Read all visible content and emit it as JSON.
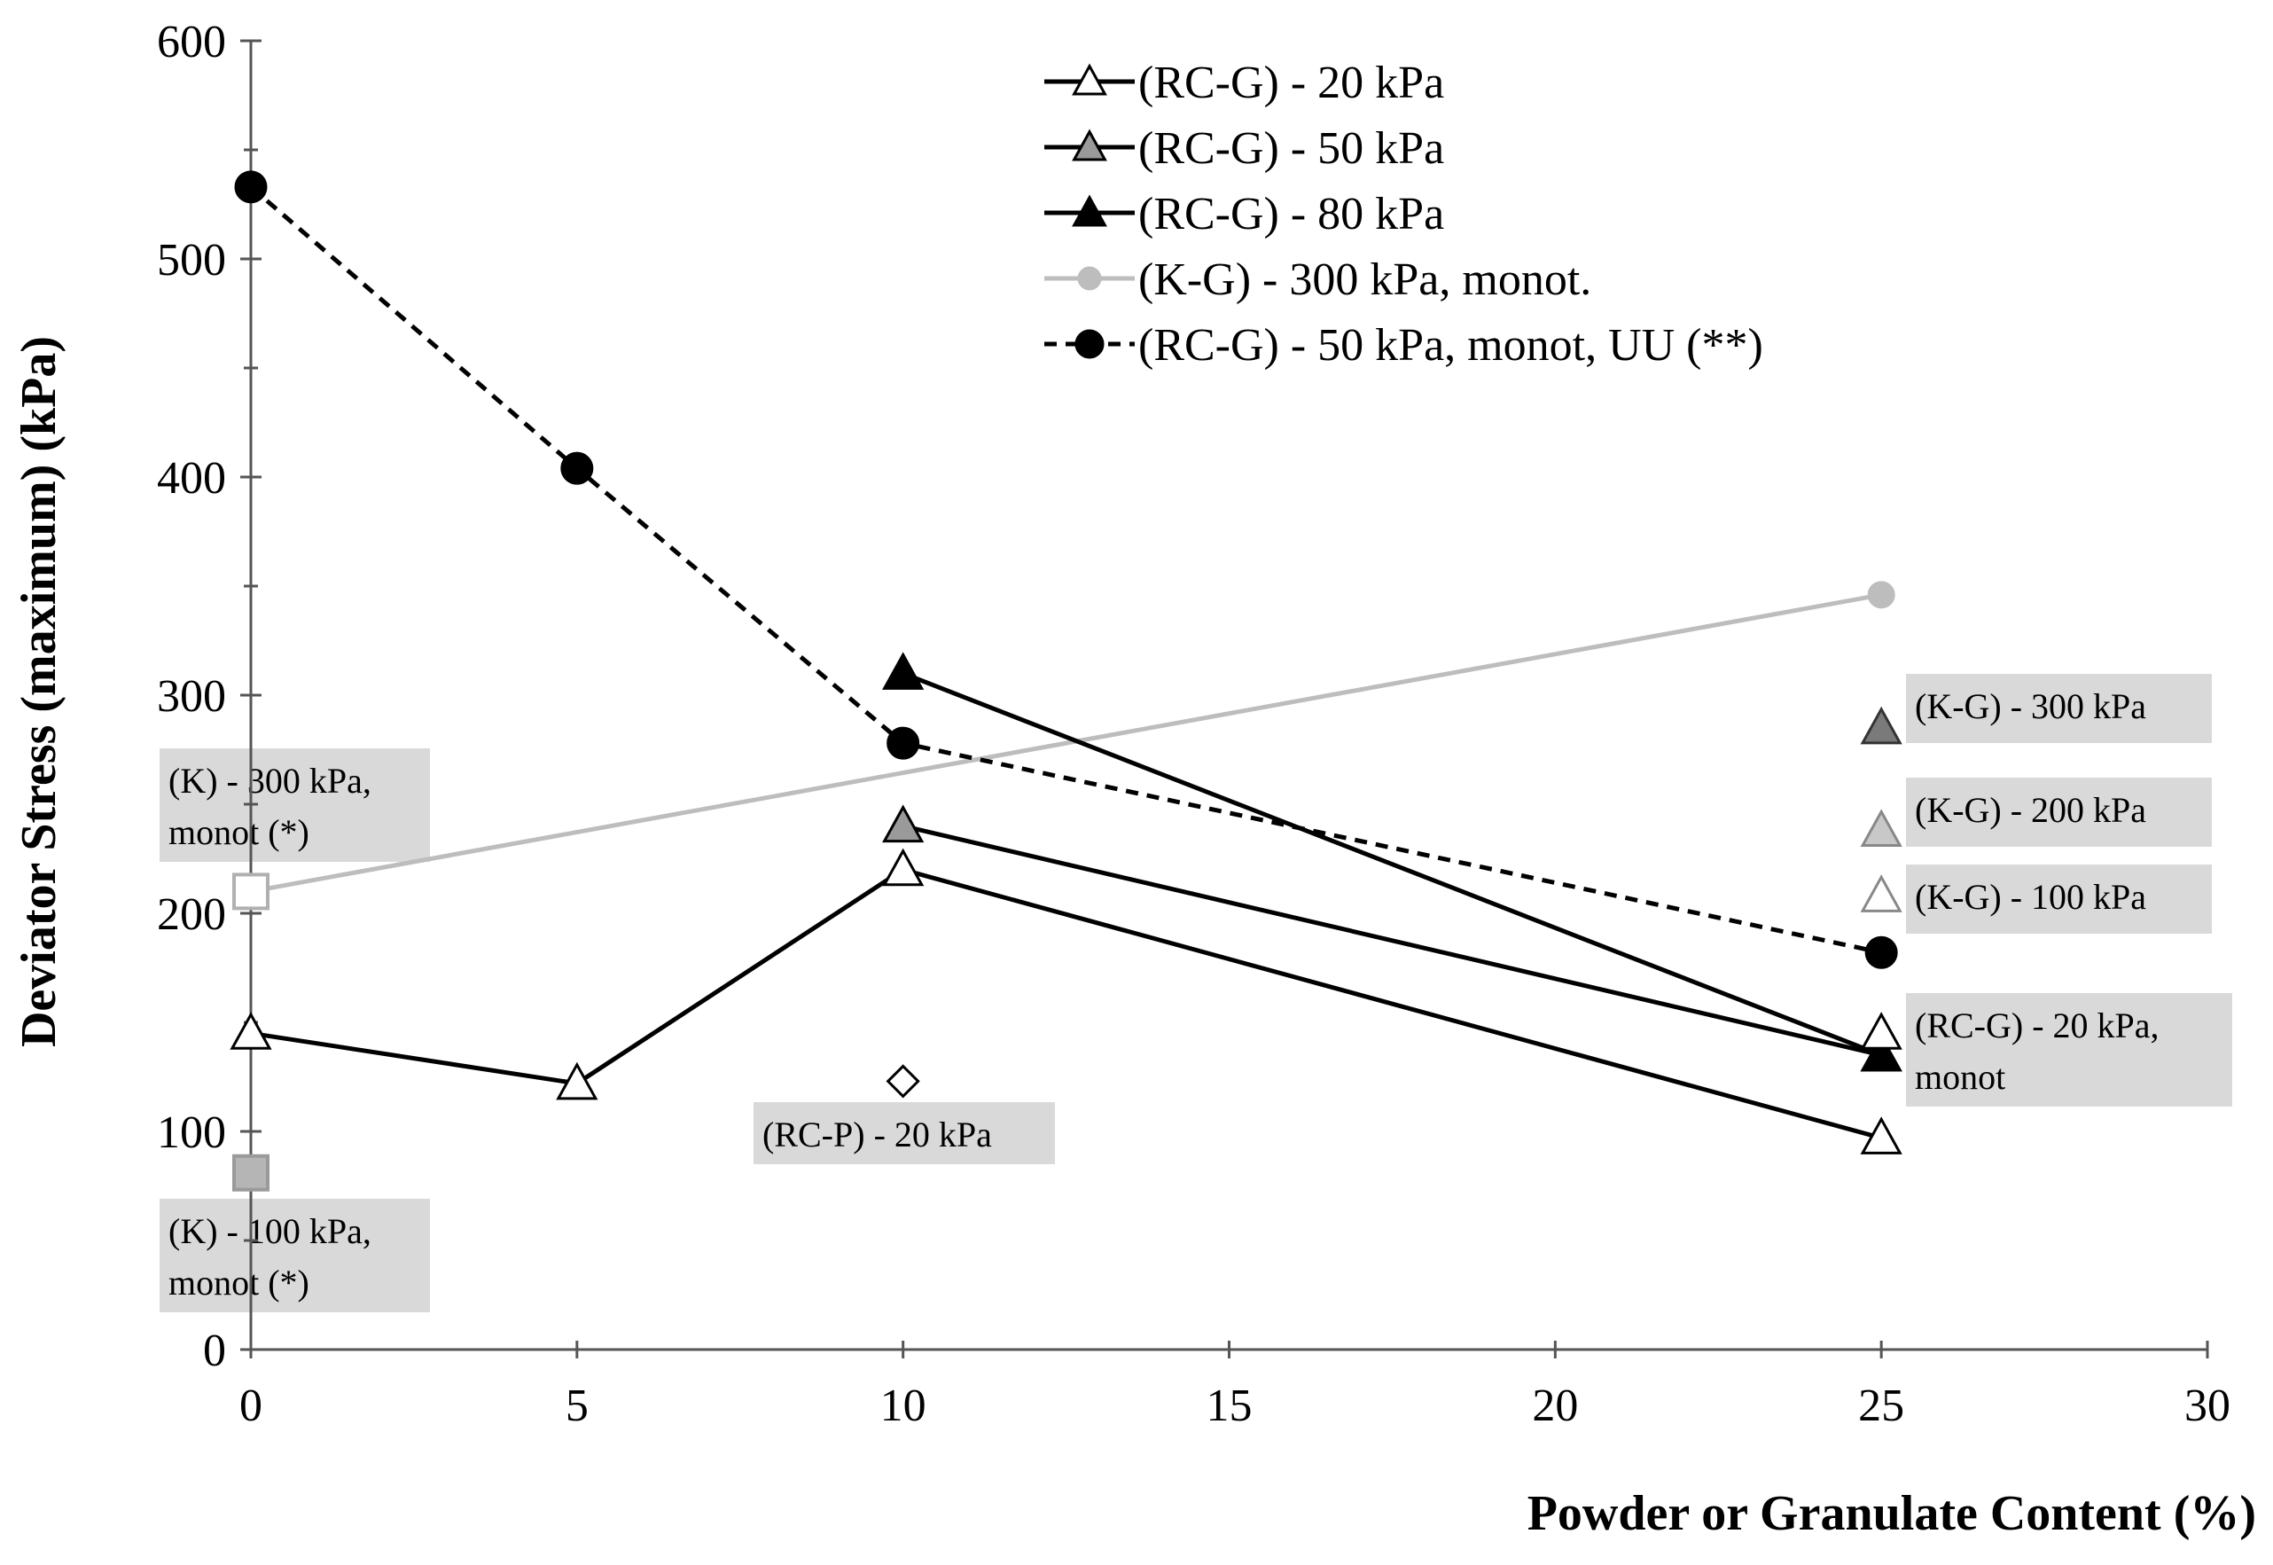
{
  "chart_data": {
    "type": "line",
    "xlabel": "Powder or Granulate Content  (%)",
    "ylabel": "Deviator Stress (maximum)  (kPa)",
    "xlim": [
      0,
      30
    ],
    "ylim": [
      0,
      600
    ],
    "xticks": [
      0,
      5,
      10,
      15,
      20,
      25,
      30
    ],
    "yticks": [
      0,
      100,
      200,
      300,
      400,
      500,
      600
    ],
    "grid": false,
    "legend_position": "top-right",
    "series": [
      {
        "name": "(RC-G) - 20 kPa",
        "x": [
          0,
          5,
          10,
          25
        ],
        "y": [
          145,
          122,
          220,
          97
        ],
        "marker": "triangle",
        "fill": "#ffffff",
        "stroke": "#000000",
        "line_color": "#000000",
        "dash": false
      },
      {
        "name": "(RC-G) - 50 kPa",
        "x": [
          10,
          25
        ],
        "y": [
          240,
          135
        ],
        "marker": "triangle",
        "fill": "#9a9a9a",
        "stroke": "#000000",
        "line_color": "#000000",
        "dash": false
      },
      {
        "name": "(RC-G) - 80 kPa",
        "x": [
          10,
          25
        ],
        "y": [
          310,
          135
        ],
        "marker": "triangle",
        "fill": "#000000",
        "stroke": "#000000",
        "line_color": "#000000",
        "dash": false
      },
      {
        "name": "(K-G) - 300 kPa, monot.",
        "x": [
          0,
          25
        ],
        "y": [
          210,
          346
        ],
        "marker": "circle",
        "fill": "#bdbdbd",
        "stroke": "#bdbdbd",
        "line_color": "#bdbdbd",
        "dash": false
      },
      {
        "name": "(RC-G) - 50 kPa, monot, UU (**)",
        "x": [
          0,
          5,
          10,
          25
        ],
        "y": [
          533,
          404,
          278,
          182
        ],
        "marker": "circle",
        "fill": "#000000",
        "stroke": "#000000",
        "line_color": "#000000",
        "dash": true
      }
    ],
    "standalone_points": [
      {
        "x": 25,
        "y": 285,
        "marker": "triangle",
        "fill": "#7a7a7a",
        "stroke": "#333333",
        "label": "(K-G) - 300 kPa"
      },
      {
        "x": 25,
        "y": 238,
        "marker": "triangle",
        "fill": "#c8c8c8",
        "stroke": "#888888",
        "label": "(K-G) - 200 kPa"
      },
      {
        "x": 25,
        "y": 208,
        "marker": "triangle",
        "fill": "#ffffff",
        "stroke": "#888888",
        "label": "(K-G) - 100 kPa"
      },
      {
        "x": 25,
        "y": 145,
        "marker": "triangle",
        "fill": "#ffffff",
        "stroke": "#000000",
        "label": "(RC-G) - 20 kPa, monot"
      },
      {
        "x": 10,
        "y": 123,
        "marker": "diamond",
        "fill": "#ffffff",
        "stroke": "#000000",
        "label": "(RC-P) - 20 kPa"
      },
      {
        "x": 0,
        "y": 210,
        "marker": "square",
        "fill": "#ffffff",
        "stroke": "#b0b0b0",
        "label": "(K) - 300 kPa, monot (*)"
      },
      {
        "x": 0,
        "y": 81,
        "marker": "square",
        "fill": "#b5b5b5",
        "stroke": "#9a9a9a",
        "label": "(K) - 100 kPa, monot (*)"
      }
    ],
    "annotations": [
      {
        "lines": [
          "(K-G) - 300 kPa"
        ],
        "anchor": "kg300"
      },
      {
        "lines": [
          "(K-G) - 200 kPa"
        ],
        "anchor": "kg200"
      },
      {
        "lines": [
          "(K-G) - 100 kPa"
        ],
        "anchor": "kg100"
      },
      {
        "lines": [
          "(RC-G) - 20 kPa,",
          "monot"
        ],
        "anchor": "rcg20monot"
      },
      {
        "lines": [
          "(RC-P) - 20 kPa"
        ],
        "anchor": "rcp20"
      },
      {
        "lines": [
          "(K) - 300 kPa,",
          "monot (*)"
        ],
        "anchor": "k300"
      },
      {
        "lines": [
          "(K) - 100 kPa,",
          "monot (*)"
        ],
        "anchor": "k100"
      }
    ],
    "annotation_box_color": "#d9d9d9"
  }
}
